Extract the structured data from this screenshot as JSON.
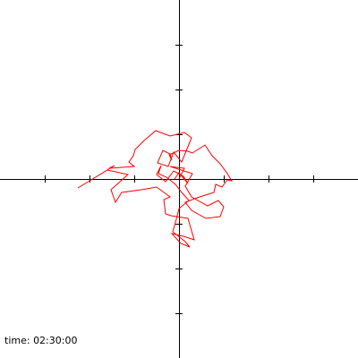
{
  "readout": {
    "label": "time:",
    "value": "02:30:00"
  },
  "colors": {
    "background": "#ffffff",
    "axes": "#000000",
    "trace": "#ff0000"
  },
  "chart_data": {
    "type": "line",
    "title": "",
    "xlabel": "",
    "ylabel": "",
    "xlim": [
      -4,
      4
    ],
    "ylim": [
      -4,
      4
    ],
    "x_ticks": [
      -3,
      -2,
      -1,
      1,
      2,
      3
    ],
    "y_ticks": [
      -3,
      -2,
      -1,
      1,
      2,
      3
    ],
    "grid": false,
    "series": [
      {
        "x": [
          0.0,
          0.12,
          -0.2,
          0.3,
          0.14,
          0.28,
          0.64,
          0.88,
          1.0,
          0.92,
          0.6,
          0.28,
          0.14,
          0.46,
          0.78,
          0.82,
          0.96,
          1.08,
          1.18,
          1.08,
          0.92,
          0.74,
          0.58,
          0.3,
          0.2,
          0.0,
          -0.22,
          -0.16,
          -0.2,
          -0.36,
          -0.48,
          -0.24,
          -0.12,
          0.06,
          0.28,
          0.12,
          -0.2,
          -0.52,
          -0.78,
          -0.98,
          -1.02,
          -1.12,
          -1.0,
          -1.56,
          -1.44,
          -2.26,
          -1.6,
          -1.14,
          -1.52,
          -1.42,
          -1.28,
          -0.84,
          -0.5,
          -0.2,
          -0.34,
          -0.3,
          -0.18,
          0.2,
          0.34,
          0.1,
          -0.16,
          0.04,
          0.24,
          0.14,
          -0.14,
          -0.06,
          0.0,
          0.22,
          0.06,
          -0.08,
          -0.28,
          -0.46,
          -0.4,
          -0.5,
          -0.3,
          -0.12,
          0.1,
          0.2,
          0.0,
          -0.1
        ],
        "y": [
          0.0,
          0.24,
          0.28,
          0.12,
          -0.16,
          -0.4,
          -0.6,
          -0.48,
          -0.62,
          -0.84,
          -0.88,
          -0.7,
          -0.52,
          -0.4,
          -0.3,
          -0.12,
          -0.18,
          -0.02,
          -0.04,
          0.12,
          0.34,
          0.52,
          0.76,
          0.58,
          0.62,
          0.64,
          0.54,
          0.42,
          0.56,
          0.64,
          0.36,
          0.28,
          0.6,
          0.38,
          0.92,
          1.04,
          0.96,
          1.08,
          0.86,
          0.66,
          0.52,
          0.38,
          0.28,
          0.24,
          0.3,
          -0.2,
          0.2,
          0.1,
          -0.24,
          -0.52,
          -0.3,
          -0.24,
          -0.18,
          -0.4,
          -0.46,
          -0.78,
          -0.82,
          -0.88,
          -1.36,
          -1.28,
          -1.22,
          -1.44,
          -1.52,
          -1.4,
          -1.18,
          -0.9,
          -0.66,
          -0.48,
          -0.3,
          -0.12,
          0.04,
          0.12,
          0.3,
          0.1,
          -0.06,
          0.18,
          0.06,
          -0.1,
          0.14,
          0.0
        ]
      }
    ]
  }
}
